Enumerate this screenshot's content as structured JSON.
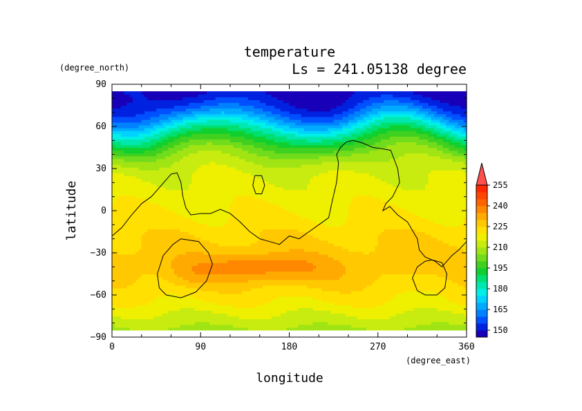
{
  "chart_data": {
    "type": "heatmap",
    "title": "temperature",
    "subtitle": "Ls = 241.05138 degree",
    "xlabel": "longitude",
    "ylabel": "latitude",
    "x_unit": "(degree_east)",
    "y_unit": "(degree_north)",
    "xlim": [
      0,
      360
    ],
    "ylim": [
      -90,
      90
    ],
    "x_ticks": [
      "0",
      "90",
      "180",
      "270",
      "360"
    ],
    "y_ticks": [
      "90",
      "60",
      "30",
      "0",
      "−30",
      "−60",
      "−90"
    ],
    "data_lat_range": [
      -85,
      85
    ],
    "colorbar": {
      "levels": [
        145,
        150,
        155,
        160,
        165,
        170,
        175,
        180,
        185,
        190,
        195,
        200,
        205,
        210,
        215,
        220,
        225,
        230,
        235,
        240,
        245,
        250,
        255,
        260
      ],
      "tick_labels": [
        "150",
        "165",
        "180",
        "195",
        "210",
        "225",
        "240",
        "255"
      ],
      "colors": [
        "#1800b8",
        "#0022e0",
        "#0050ff",
        "#0082ff",
        "#00aaff",
        "#00d2ff",
        "#00f0e8",
        "#00e8b0",
        "#00e070",
        "#10d030",
        "#40d020",
        "#70dc1c",
        "#a0e414",
        "#c8ec10",
        "#eef000",
        "#ffe000",
        "#ffc800",
        "#ffaa00",
        "#ff8800",
        "#ff6400",
        "#ff4400",
        "#ff2800",
        "#ff5050"
      ],
      "extend": "max"
    },
    "field": {
      "lon": [
        0,
        15,
        30,
        45,
        60,
        75,
        90,
        105,
        120,
        135,
        150,
        165,
        180,
        195,
        210,
        225,
        240,
        255,
        270,
        285,
        300,
        315,
        330,
        345,
        360
      ],
      "lat": [
        -85,
        -80,
        -75,
        -70,
        -65,
        -60,
        -55,
        -50,
        -45,
        -40,
        -35,
        -30,
        -25,
        -20,
        -15,
        -10,
        -5,
        0,
        5,
        10,
        15,
        20,
        25,
        30,
        35,
        40,
        45,
        50,
        55,
        60,
        65,
        70,
        75,
        80,
        85
      ],
      "zonal_mean": [
        208,
        212,
        214,
        217,
        220,
        222,
        224,
        226,
        227,
        228,
        228,
        227,
        226,
        225,
        224,
        222,
        221,
        220,
        219,
        218,
        217,
        216,
        215,
        213,
        210,
        206,
        200,
        194,
        186,
        178,
        168,
        160,
        154,
        150,
        148
      ],
      "warm_anomalies": [
        {
          "lon": 140,
          "lat": -40,
          "amplitude": 10,
          "lon_width": 70,
          "lat_width": 14
        },
        {
          "lon": 190,
          "lat": -42,
          "amplitude": 4,
          "lon_width": 70,
          "lat_width": 14
        },
        {
          "lon": 80,
          "lat": -45,
          "amplitude": 4,
          "lon_width": 30,
          "lat_width": 12
        },
        {
          "lon": 330,
          "lat": -50,
          "amplitude": -4,
          "lon_width": 40,
          "lat_width": 18
        }
      ],
      "northern_wave": {
        "amplitude_deg": 7,
        "wavenumber": 2,
        "phase_deg": 20
      }
    },
    "contour_220": [
      {
        "name": "northern-contour",
        "lon": [
          0,
          10,
          20,
          30,
          40,
          50,
          60,
          66,
          70,
          72,
          75,
          80,
          90,
          100,
          110,
          120,
          130,
          140,
          150,
          160,
          170,
          180,
          190,
          200,
          210,
          220,
          224,
          228,
          230,
          228,
          232,
          238,
          245,
          255,
          265,
          275,
          283,
          290,
          292,
          285,
          278,
          275,
          282,
          290,
          300,
          310,
          312,
          318,
          328,
          335,
          345,
          352,
          360
        ],
        "lat": [
          -18,
          -12,
          -3,
          5,
          10,
          18,
          26,
          27,
          20,
          10,
          2,
          -3,
          -2,
          -2,
          1,
          -2,
          -8,
          -15,
          -20,
          -22,
          -24,
          -18,
          -20,
          -15,
          -10,
          -5,
          8,
          20,
          34,
          40,
          45,
          49,
          50,
          48,
          45,
          44,
          43,
          30,
          20,
          10,
          5,
          0,
          3,
          -3,
          -8,
          -20,
          -28,
          -33,
          -36,
          -40,
          -32,
          -28,
          -22
        ]
      },
      {
        "name": "small-closed-contour",
        "lon": [
          145,
          152,
          155,
          152,
          146,
          143,
          145
        ],
        "lat": [
          25,
          25,
          18,
          12,
          12,
          18,
          25
        ]
      },
      {
        "name": "southwest-closed-contour",
        "lon": [
          70,
          88,
          98,
          102,
          96,
          85,
          70,
          55,
          48,
          46,
          52,
          62,
          70
        ],
        "lat": [
          -20,
          -22,
          -30,
          -38,
          -50,
          -58,
          -62,
          -60,
          -55,
          -45,
          -32,
          -24,
          -20
        ]
      },
      {
        "name": "southeast-closed-contour",
        "lon": [
          325,
          335,
          340,
          338,
          330,
          318,
          310,
          305,
          310,
          318,
          325
        ],
        "lat": [
          -35,
          -37,
          -45,
          -55,
          -60,
          -60,
          -57,
          -48,
          -40,
          -36,
          -35
        ]
      }
    ]
  }
}
